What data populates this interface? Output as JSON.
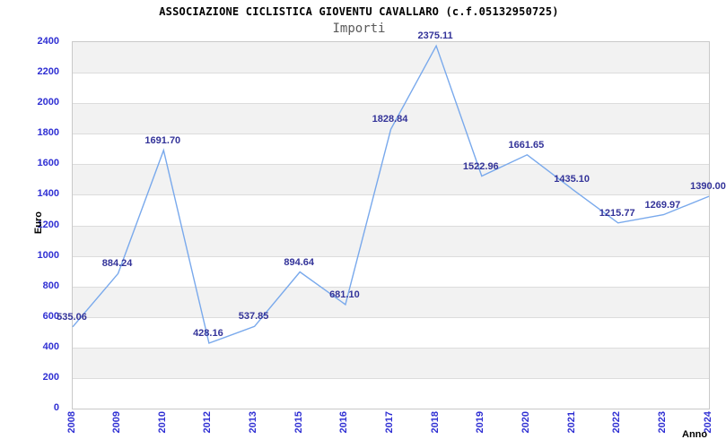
{
  "chart_data": {
    "type": "line",
    "title": "ASSOCIAZIONE CICLISTICA GIOVENTU CAVALLARO (c.f.05132950725)",
    "subtitle": "Importi",
    "xlabel": "Anno",
    "ylabel": "Euro",
    "categories": [
      "2008",
      "2009",
      "2010",
      "2012",
      "2013",
      "2015",
      "2016",
      "2017",
      "2018",
      "2019",
      "2020",
      "2021",
      "2022",
      "2023",
      "2024"
    ],
    "series": [
      {
        "name": "Importi",
        "values": [
          535.06,
          884.24,
          1691.7,
          428.16,
          537.85,
          894.64,
          681.1,
          1828.84,
          2375.11,
          1522.96,
          1661.65,
          1435.1,
          1215.77,
          1269.97,
          1390.0
        ],
        "point_labels": [
          "535.06",
          "884.24",
          "1691.70",
          "428.16",
          "537.85",
          "894.64",
          "681.10",
          "1828.84",
          "2375.11",
          "1522.96",
          "1661.65",
          "1435.10",
          "1215.77",
          "1269.97",
          "1390.00"
        ]
      }
    ],
    "ylim": [
      0,
      2400
    ],
    "ytick_step": 200,
    "ytick_labels": [
      "0",
      "200",
      "400",
      "600",
      "800",
      "1000",
      "1200",
      "1400",
      "1600",
      "1800",
      "2000",
      "2200",
      "2400"
    ],
    "legend": "none",
    "grid": "horizontal-bands-alternating",
    "markers": "none",
    "colors": {
      "line": "#79a9ec",
      "band": "#f2f2f2",
      "gridline": "#dcdcdc",
      "plot_border": "#c9c9c9",
      "tick_label": "#2f2fd3",
      "value_label": "#333399",
      "title": "#000000",
      "subtitle": "#5a5a5a",
      "axis_title": "#000000",
      "background": "#ffffff"
    }
  }
}
